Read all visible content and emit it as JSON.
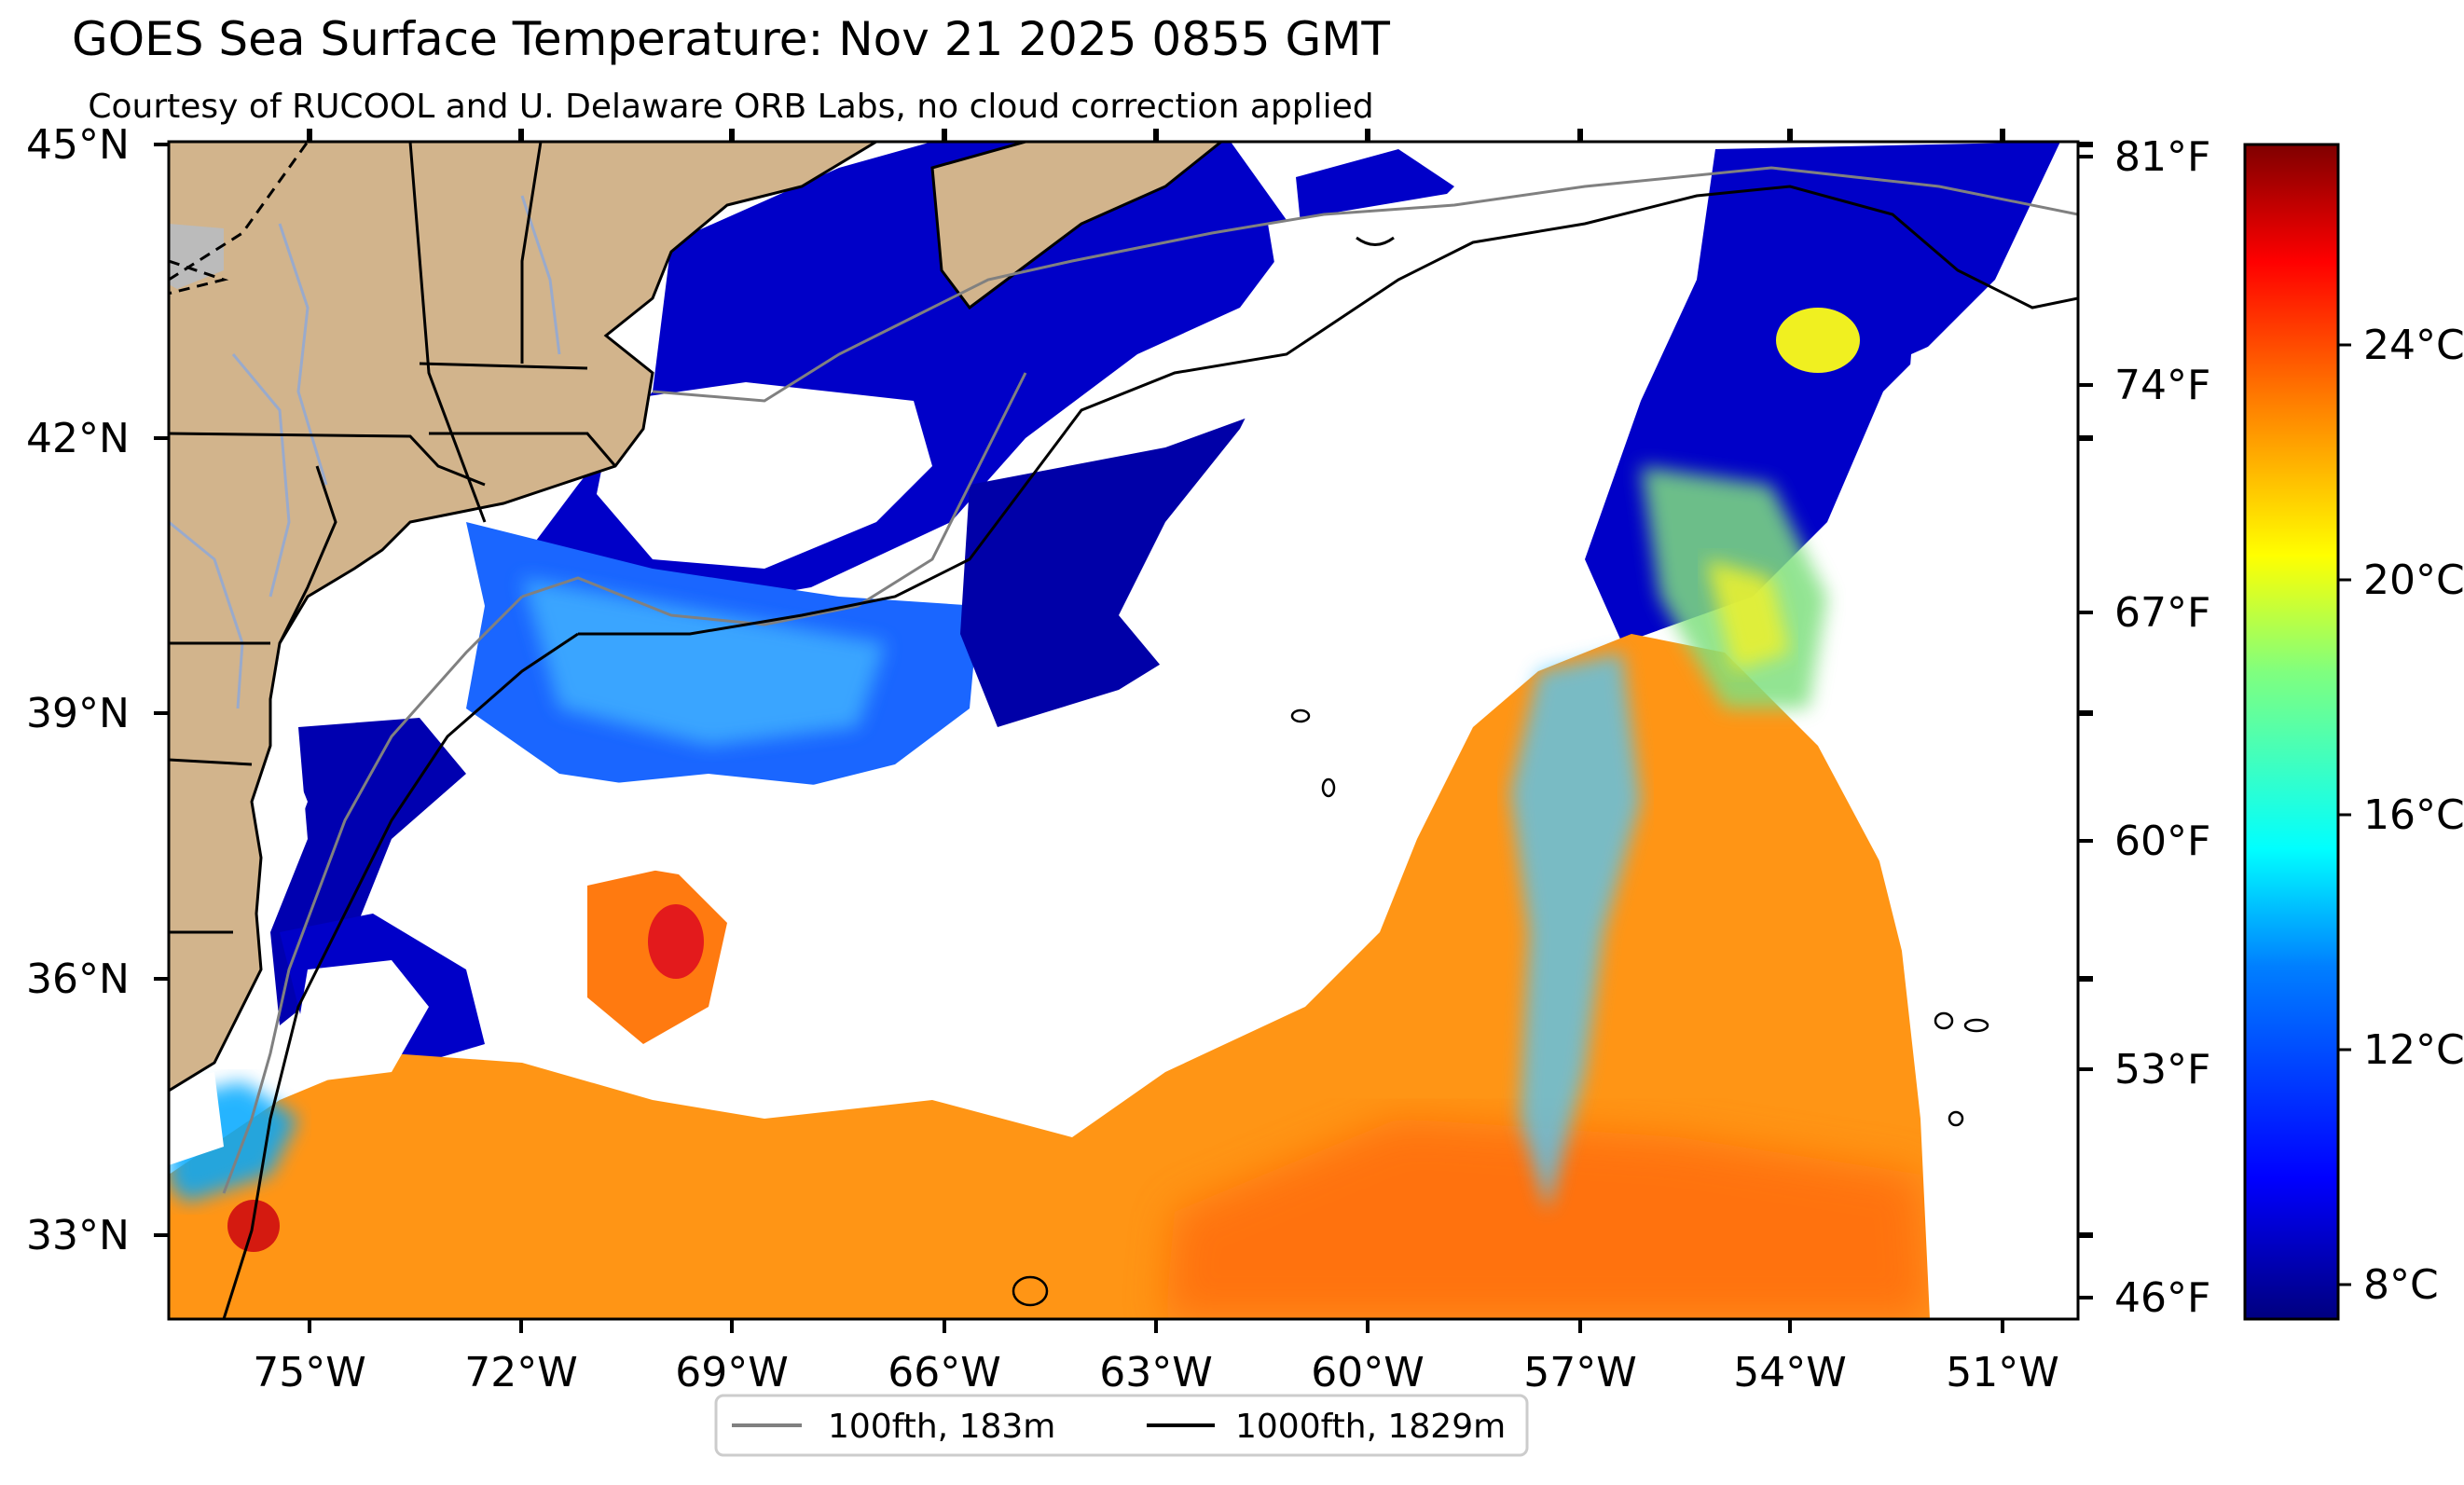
{
  "title": "GOES Sea Surface Temperature: Nov 21 2025 0855 GMT",
  "subtitle": "Courtesy of RUCOOL and U. Delaware ORB Labs, no cloud correction applied",
  "axes": {
    "lat_labels": [
      "45°N",
      "42°N",
      "39°N",
      "36°N",
      "33°N"
    ],
    "lon_labels": [
      "75°W",
      "72°W",
      "69°W",
      "66°W",
      "63°W",
      "60°W",
      "57°W",
      "54°W",
      "51°W"
    ],
    "fahrenheit_labels": [
      "81°F",
      "74°F",
      "67°F",
      "60°F",
      "53°F",
      "46°F"
    ]
  },
  "colorbar": {
    "labels": [
      "24°C",
      "20°C",
      "16°C",
      "12°C",
      "8°C"
    ],
    "colormap": [
      "#00007f",
      "#0000ff",
      "#007fff",
      "#00ffff",
      "#7fff7f",
      "#ffff00",
      "#ff7f00",
      "#ff0000",
      "#7f0000"
    ]
  },
  "legend": {
    "items": [
      {
        "label": "100fth, 183m",
        "color": "#808080"
      },
      {
        "label": "1000fth, 1829m",
        "color": "#000000"
      }
    ]
  },
  "colors": {
    "land": "#d2b48c",
    "lakes": "#bbbbbb",
    "cloud_mask": "#ffffff",
    "rivers": "#99aacc",
    "cold_sst": "#0000a0",
    "mid_sst": "#1fa0ff",
    "warm_sst": "#ff9b10"
  }
}
